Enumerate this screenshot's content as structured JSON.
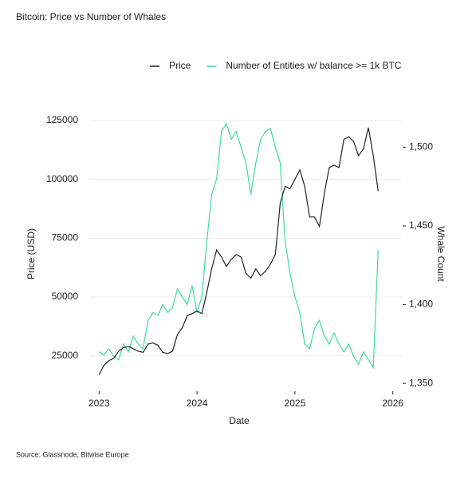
{
  "chart_data": {
    "type": "line",
    "title": "Bitcoin: Price vs Number of Whales",
    "source": "Source: Glassnode, Bitwise Europe",
    "x_label": "Date",
    "y_label": "Price (USD)",
    "y2_label": "Whale Count",
    "xlim": [
      2022.9,
      2026.1
    ],
    "xticks": [
      2023,
      2024,
      2025,
      2026
    ],
    "ylim": [
      10000,
      127000
    ],
    "yticks": [
      25000,
      50000,
      75000,
      100000,
      125000
    ],
    "y2lim": [
      1345,
      1520
    ],
    "y2ticks": [
      {
        "value": 1350,
        "label": "1,350"
      },
      {
        "value": 1400,
        "label": "1,400"
      },
      {
        "value": 1450,
        "label": "1,450"
      },
      {
        "value": 1500,
        "label": "1,500"
      }
    ],
    "grid": true,
    "legend": "top",
    "x": [
      2023.0,
      2023.05,
      2023.1,
      2023.15,
      2023.2,
      2023.25,
      2023.3,
      2023.35,
      2023.4,
      2023.45,
      2023.5,
      2023.55,
      2023.6,
      2023.65,
      2023.7,
      2023.75,
      2023.8,
      2023.85,
      2023.9,
      2023.95,
      2024.0,
      2024.05,
      2024.1,
      2024.15,
      2024.2,
      2024.25,
      2024.3,
      2024.35,
      2024.4,
      2024.45,
      2024.5,
      2024.55,
      2024.6,
      2024.65,
      2024.7,
      2024.75,
      2024.8,
      2024.85,
      2024.9,
      2024.95,
      2025.0,
      2025.05,
      2025.1,
      2025.15,
      2025.2,
      2025.25,
      2025.3,
      2025.35,
      2025.4,
      2025.45,
      2025.5,
      2025.55,
      2025.6,
      2025.65,
      2025.7,
      2025.75,
      2025.8,
      2025.85
    ],
    "series": [
      {
        "name": "Price",
        "color": "#222222",
        "values": [
          17000,
          21000,
          23000,
          24000,
          27000,
          28500,
          29000,
          28000,
          27000,
          26500,
          30000,
          30500,
          29500,
          26500,
          26000,
          27000,
          34000,
          37000,
          42000,
          43000,
          44000,
          43000,
          52000,
          62000,
          70000,
          67000,
          63000,
          66000,
          68000,
          67000,
          60000,
          58000,
          62000,
          59000,
          61000,
          64000,
          68000,
          90000,
          97000,
          96000,
          100000,
          104000,
          97000,
          84000,
          84000,
          80000,
          94000,
          105000,
          106000,
          105000,
          117000,
          118000,
          116000,
          110000,
          113000,
          122000,
          110000,
          95000
        ]
      },
      {
        "name": "Number of Entities w/ balance >= 1k BTC",
        "color": "#3ddc97",
        "axis": "y2",
        "values": [
          1370,
          1368,
          1372,
          1367,
          1365,
          1375,
          1370,
          1380,
          1375,
          1372,
          1390,
          1395,
          1393,
          1400,
          1395,
          1398,
          1410,
          1405,
          1400,
          1412,
          1395,
          1405,
          1440,
          1470,
          1480,
          1510,
          1515,
          1505,
          1510,
          1500,
          1490,
          1470,
          1490,
          1505,
          1510,
          1512,
          1500,
          1490,
          1440,
          1420,
          1405,
          1395,
          1375,
          1372,
          1385,
          1390,
          1380,
          1375,
          1382,
          1375,
          1370,
          1375,
          1367,
          1362,
          1370,
          1365,
          1360,
          1435
        ]
      }
    ]
  }
}
